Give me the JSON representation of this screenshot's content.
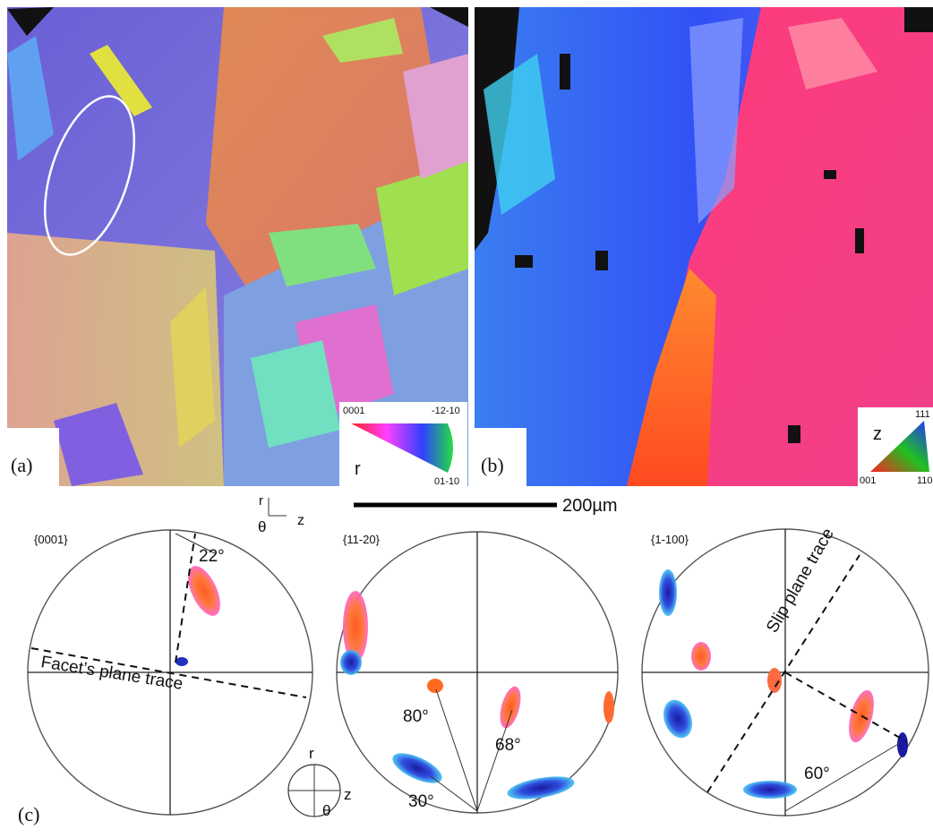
{
  "panels": {
    "a": {
      "label": "(a)",
      "legend": {
        "top_left": "0001",
        "top_right": "-12-10",
        "bottom_right": "01-10",
        "axis": "r"
      }
    },
    "b": {
      "label": "(b)",
      "legend": {
        "axis": "z",
        "top": "111",
        "bottom_left": "001",
        "bottom_right": "110"
      }
    },
    "c": {
      "label": "(c)"
    }
  },
  "scale_bar": "200µm",
  "axes_key": {
    "r": "r",
    "theta": "θ",
    "z": "z"
  },
  "pole_figures": [
    {
      "title": "{0001}",
      "annotations": [
        "22°",
        "Facet’s plane trace"
      ]
    },
    {
      "title": "{11-20}",
      "annotations": [
        "80°",
        "68°",
        "30°"
      ]
    },
    {
      "title": "{1-100}",
      "annotations": [
        "Slip plane trace",
        "60°"
      ]
    }
  ],
  "sample_key": {
    "r": "r",
    "theta": "θ",
    "z": "z"
  }
}
